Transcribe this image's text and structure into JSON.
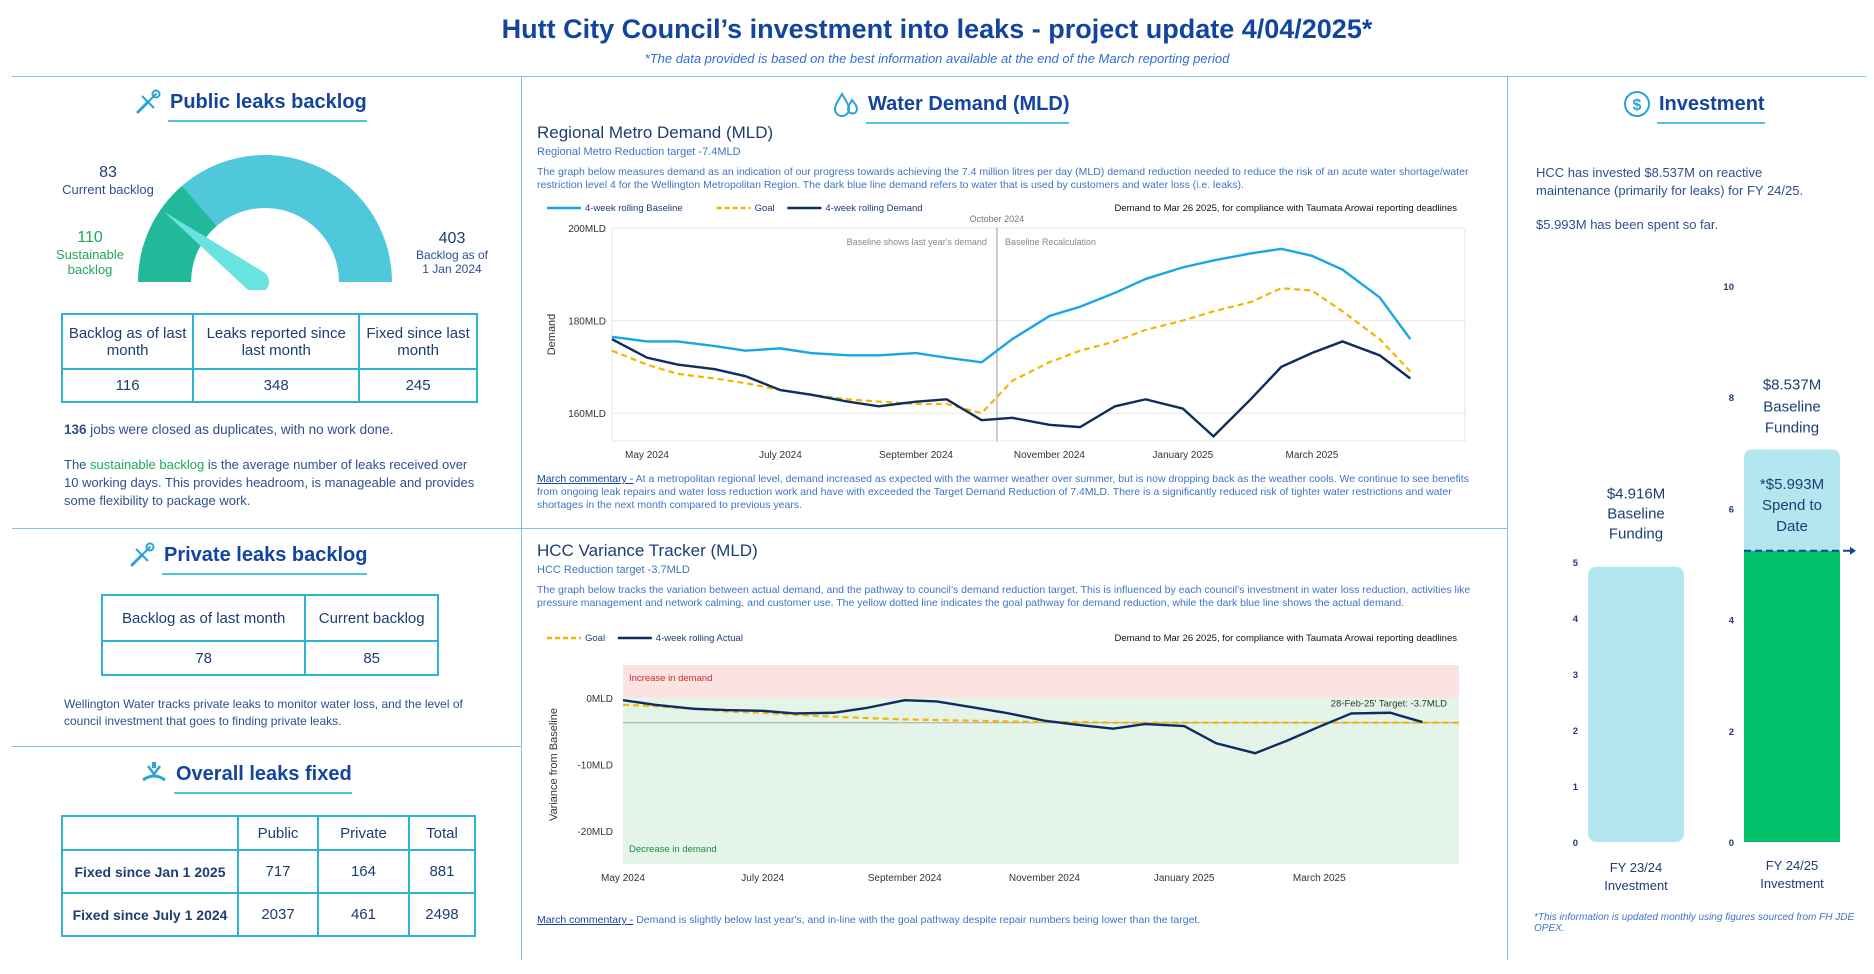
{
  "header": {
    "title": "Hutt City Council’s investment into leaks - project update 4/04/2025*",
    "subtitle": "*The data provided is based on the best information available at the end of the March reporting period"
  },
  "public_backlog": {
    "title": "Public leaks backlog",
    "current_value": "83",
    "current_label": "Current backlog",
    "sustainable_value": "110",
    "sustainable_label_1": "Sustainable",
    "sustainable_label_2": "backlog",
    "jan_value": "403",
    "jan_label_1": "Backlog as of",
    "jan_label_2": "1 Jan 2024",
    "gauge": {
      "current": 83,
      "sustainable": 110,
      "max": 403
    },
    "table_headers": [
      "Backlog as of last month",
      "Leaks reported since last month",
      "Fixed since last month"
    ],
    "table_values": [
      "116",
      "348",
      "245"
    ],
    "duplicates_count": "136",
    "duplicates_text": " jobs were closed as duplicates, with no work done.",
    "note_pre": "The ",
    "note_highlight": "sustainable backlog",
    "note_post": " is the average number of leaks received over 10 working days. This provides headroom, is manageable and provides some flexibility to package work."
  },
  "private_backlog": {
    "title": "Private leaks backlog",
    "table_headers": [
      "Backlog as of last month",
      "Current backlog"
    ],
    "table_values": [
      "78",
      "85"
    ],
    "note": "Wellington Water tracks private leaks to monitor water loss, and the level of council investment that goes to finding private leaks."
  },
  "overall_fixed": {
    "title": "Overall leaks fixed",
    "columns": [
      "Public",
      "Private",
      "Total"
    ],
    "rows": [
      {
        "label": "Fixed since Jan 1 2025",
        "values": [
          "717",
          "164",
          "881"
        ]
      },
      {
        "label": "Fixed since July 1 2024",
        "values": [
          "2037",
          "461",
          "2498"
        ]
      }
    ]
  },
  "water_demand": {
    "title": "Water Demand (MLD)",
    "regional": {
      "title": "Regional Metro Demand (MLD)",
      "subtitle": "Regional Metro Reduction target -7.4MLD",
      "description": "The graph below measures demand as an indication of our progress towards achieving the 7.4 million litres per day (MLD) demand reduction needed to reduce the risk of an acute water shortage/water restriction level 4 for the Wellington Metropolitan Region. The dark blue line demand refers to water that is used by customers and water loss (i.e. leaks).",
      "commentary_label": "March commentary -",
      "commentary": " At a metropolitan regional level, demand increased as expected with the warmer weather over summer, but is now dropping back as the weather cools. We continue to see benefits from ongoing leak repairs and water loss reduction work and have with exceeded the Target Demand Reduction of 7.4MLD. There is a significantly reduced risk of tighter water restrictions and water shortages in the next month compared to previous years."
    },
    "variance": {
      "title": "HCC Variance Tracker (MLD)",
      "subtitle": "HCC Reduction target -3.7MLD",
      "description": "The graph below tracks the variation between actual demand, and the pathway to council’s demand reduction target. This is influenced by each council’s investment in water loss reduction, activities like pressure management and network calming, and customer use. The yellow dotted line indicates the goal pathway for demand reduction, while the dark blue line shows the actual demand.",
      "commentary_label": "March commentary -",
      "commentary": " Demand is slightly below last year's, and in-line with the goal pathway despite repair numbers being lower than the target."
    }
  },
  "investment": {
    "title": "Investment",
    "text_1": "HCC has invested $8.537M on reactive maintenance (primarily for leaks) for FY 24/25.",
    "text_2": "$5.993M has been spent so far.",
    "footnote": "*This information is updated monthly using figures sourced from FH JDE OPEX."
  },
  "chart_data": [
    {
      "type": "line",
      "title": "Regional Metro Demand (MLD)",
      "legend": [
        "4-week rolling Baseline",
        "Goal",
        "4-week rolling Demand"
      ],
      "note": "Demand to Mar 26 2025, for compliance with Taumata Arowai reporting deadlines",
      "annotations": [
        "October 2024",
        "Baseline shows last year's demand",
        "Baseline Recalculation"
      ],
      "ylabel": "Demand",
      "yticks": [
        "200MLD",
        "180MLD",
        "160MLD"
      ],
      "ylim": [
        154,
        200
      ],
      "xticks": [
        "May 2024",
        "July 2024",
        "September 2024",
        "November 2024",
        "January 2025",
        "March 2025"
      ],
      "x": [
        "2024-04-15",
        "2024-05-01",
        "2024-05-15",
        "2024-06-01",
        "2024-06-15",
        "2024-07-01",
        "2024-07-15",
        "2024-08-01",
        "2024-08-15",
        "2024-09-01",
        "2024-09-15",
        "2024-10-01",
        "2024-10-15",
        "2024-11-01",
        "2024-11-15",
        "2024-12-01",
        "2024-12-15",
        "2025-01-01",
        "2025-01-15",
        "2025-02-01",
        "2025-02-15",
        "2025-03-01",
        "2025-03-15",
        "2025-04-01",
        "2025-04-15"
      ],
      "series": [
        {
          "name": "4-week rolling Baseline",
          "color": "#17a6e6",
          "dash": false,
          "values": [
            176.5,
            175.5,
            175.5,
            174.5,
            173.5,
            174,
            173,
            172.5,
            172.5,
            173,
            172,
            171,
            176,
            181,
            183,
            186,
            189,
            191.5,
            193,
            194.5,
            195.5,
            194,
            191,
            185,
            176
          ]
        },
        {
          "name": "Goal",
          "color": "#f5b400",
          "dash": true,
          "values": [
            173.5,
            170.5,
            168.5,
            167.5,
            166.5,
            165,
            164,
            163,
            162.5,
            162,
            162,
            160,
            167,
            171,
            173.5,
            175.5,
            178,
            180,
            182,
            184,
            187,
            186.5,
            182,
            176,
            169
          ]
        },
        {
          "name": "4-week rolling Demand",
          "color": "#0d2c61",
          "dash": false,
          "values": [
            176,
            172,
            170.5,
            169.5,
            168,
            165,
            164,
            162.5,
            161.5,
            162.5,
            163,
            158.5,
            159,
            157.5,
            157,
            161.5,
            163,
            161,
            155,
            163,
            170,
            173,
            175.5,
            172.5,
            167.5
          ]
        }
      ]
    },
    {
      "type": "line",
      "title": "HCC Variance Tracker (MLD)",
      "legend": [
        "Goal",
        "4-week rolling Actual"
      ],
      "note": "Demand to Mar 26 2025, for compliance with Taumata Arowai reporting deadlines",
      "annotations": [
        "Increase in demand",
        "Decrease in demand",
        "28-Feb-25' Target: -3.7MLD"
      ],
      "ylabel": "Variance from Baseline",
      "yticks": [
        "0MLD",
        "-10MLD",
        "-20MLD"
      ],
      "ylim": [
        -25,
        5
      ],
      "xticks": [
        "May 2024",
        "July 2024",
        "September 2024",
        "November 2024",
        "January 2025",
        "March 2025"
      ],
      "x": [
        "2024-05-01",
        "2024-05-15",
        "2024-06-01",
        "2024-06-15",
        "2024-07-01",
        "2024-07-15",
        "2024-08-01",
        "2024-08-15",
        "2024-09-01",
        "2024-09-15",
        "2024-10-01",
        "2024-10-15",
        "2024-11-01",
        "2024-11-15",
        "2024-12-01",
        "2024-12-15",
        "2025-01-01",
        "2025-01-15",
        "2025-02-01",
        "2025-02-15",
        "2025-03-01",
        "2025-03-15",
        "2025-04-01",
        "2025-04-15",
        "2025-05-01"
      ],
      "series": [
        {
          "name": "Goal",
          "color": "#f5b400",
          "dash": true,
          "values": [
            -1,
            -1.2,
            -1.6,
            -2.0,
            -2.2,
            -2.5,
            -2.8,
            -3.0,
            -3.2,
            -3.3,
            -3.4,
            -3.5,
            -3.6,
            -3.6,
            -3.7,
            -3.7,
            -3.7,
            -3.7,
            -3.7,
            -3.7,
            -3.7,
            -3.7,
            -3.7,
            -3.7,
            -3.7
          ]
        },
        {
          "name": "4-week rolling Actual",
          "color": "#0d2c61",
          "dash": false,
          "values": [
            -0.3,
            -1.0,
            -1.6,
            -1.8,
            -1.9,
            -2.3,
            -2.2,
            -1.5,
            -0.3,
            -0.5,
            -1.4,
            -2.2,
            -3.4,
            -4.0,
            -4.6,
            -3.9,
            -4.2,
            -6.8,
            -8.3,
            -6.4,
            -4.3,
            -2.3,
            -2.2,
            -3.6,
            null
          ]
        }
      ]
    },
    {
      "type": "bar",
      "title": "Investment",
      "categories": [
        "FY 23/24 Investment",
        "FY 24/25 Investment"
      ],
      "yticks_left": [
        "5",
        "4",
        "3",
        "2",
        "1",
        "0"
      ],
      "yticks_right": [
        "10",
        "8",
        "6",
        "4",
        "2",
        "0"
      ],
      "series": [
        {
          "name": "Baseline Funding",
          "values": [
            4.916,
            8.537
          ],
          "labels": [
            "$4.916M",
            "$8.537M"
          ],
          "color": "#b3e6ef"
        },
        {
          "name": "Spend to Date",
          "values": [
            null,
            5.993
          ],
          "labels": [
            "",
            "*$5.993M"
          ],
          "color": "#00c16a"
        }
      ],
      "bar_texts": {
        "baseline": "Baseline Funding",
        "spend": "Spend to Date"
      }
    }
  ]
}
